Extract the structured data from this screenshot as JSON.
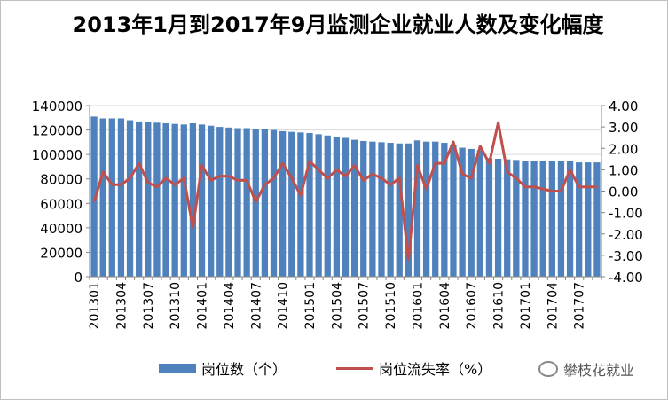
{
  "title": "2013年1月到2017年9月监测企业就业人数及变化幅度",
  "watermark": "攀枝花就业",
  "colors": {
    "bar": "#4F81BD",
    "line": "#C0504D",
    "grid": "#D9D9D9",
    "axis": "#868686"
  },
  "chart_data": {
    "type": "bar",
    "categories": [
      "201301",
      "201302",
      "201303",
      "201304",
      "201305",
      "201306",
      "201307",
      "201308",
      "201309",
      "201310",
      "201311",
      "201312",
      "201401",
      "201402",
      "201403",
      "201404",
      "201405",
      "201406",
      "201407",
      "201408",
      "201409",
      "201410",
      "201411",
      "201412",
      "201501",
      "201502",
      "201503",
      "201504",
      "201505",
      "201506",
      "201507",
      "201508",
      "201509",
      "201510",
      "201511",
      "201512",
      "201601",
      "201602",
      "201603",
      "201604",
      "201605",
      "201606",
      "201607",
      "201608",
      "201609",
      "201610",
      "201611",
      "201612",
      "201701",
      "201702",
      "201703",
      "201704",
      "201705",
      "201706",
      "201707",
      "201708",
      "201709"
    ],
    "x_tick_labels": [
      "201301",
      "201304",
      "201307",
      "201310",
      "201401",
      "201404",
      "201407",
      "201410",
      "201501",
      "201504",
      "201507",
      "201510",
      "201601",
      "201604",
      "201607",
      "201610",
      "201701",
      "201704",
      "201707"
    ],
    "series": [
      {
        "name": "岗位数（个）",
        "type": "bar",
        "axis": "left",
        "values": [
          131000,
          129500,
          129500,
          129500,
          128000,
          127000,
          126500,
          126000,
          125500,
          125000,
          124500,
          125500,
          124500,
          123500,
          122500,
          122000,
          121500,
          121500,
          121000,
          120500,
          120000,
          119000,
          118500,
          118000,
          117500,
          116500,
          115500,
          114500,
          113500,
          112000,
          111000,
          110500,
          110000,
          109500,
          109000,
          109000,
          111500,
          110500,
          110500,
          109500,
          108000,
          105500,
          104500,
          103500,
          97000,
          96500,
          96000,
          95500,
          95000,
          94500,
          94500,
          94500,
          94500,
          94500,
          93500,
          93500,
          93500
        ]
      },
      {
        "name": "岗位流失率（%）",
        "type": "line",
        "axis": "right",
        "values": [
          -0.5,
          0.9,
          0.3,
          0.3,
          0.6,
          1.3,
          0.4,
          0.2,
          0.6,
          0.3,
          0.6,
          -1.7,
          1.2,
          0.5,
          0.7,
          0.7,
          0.5,
          0.5,
          -0.5,
          0.3,
          0.6,
          1.3,
          0.6,
          -0.2,
          1.4,
          1.0,
          0.6,
          1.0,
          0.7,
          1.2,
          0.5,
          0.8,
          0.6,
          0.3,
          0.6,
          -3.2,
          1.2,
          0.1,
          1.3,
          1.3,
          2.3,
          0.8,
          0.6,
          2.1,
          1.3,
          3.2,
          0.9,
          0.6,
          0.2,
          0.2,
          0.1,
          0.0,
          0.0,
          1.0,
          0.2,
          0.2,
          0.2
        ]
      }
    ],
    "y_left": {
      "min": 0,
      "max": 140000,
      "ticks": [
        0,
        20000,
        40000,
        60000,
        80000,
        100000,
        120000,
        140000
      ],
      "tick_labels": [
        "0",
        "20000",
        "40000",
        "60000",
        "80000",
        "100000",
        "120000",
        "140000"
      ]
    },
    "y_right": {
      "min": -4,
      "max": 4,
      "ticks": [
        -4,
        -3,
        -2,
        -1,
        0,
        1,
        2,
        3,
        4
      ],
      "tick_labels": [
        "-4.00",
        "-3.00",
        "-2.00",
        "-1.00",
        "0.00",
        "1.00",
        "2.00",
        "3.00",
        "4.00"
      ]
    },
    "grid": true,
    "legend": "bottom"
  }
}
